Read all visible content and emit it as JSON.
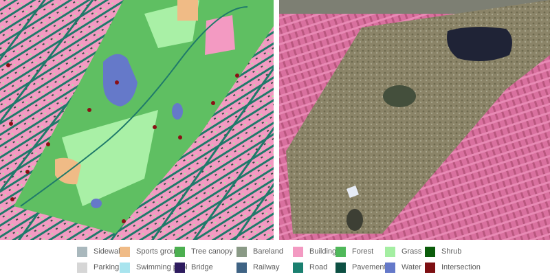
{
  "legend": [
    {
      "label": "Sidewalk",
      "color": "#a9b8bd"
    },
    {
      "label": "Sports ground",
      "color": "#f0bb86"
    },
    {
      "label": "Tree canopy",
      "color": "#4caf50"
    },
    {
      "label": "Bareland",
      "color": "#8a9a86"
    },
    {
      "label": "Building",
      "color": "#f39ac2"
    },
    {
      "label": "Forest",
      "color": "#4fb85a"
    },
    {
      "label": "Grass",
      "color": "#a4eea2"
    },
    {
      "label": "Shrub",
      "color": "#0b5c0b"
    },
    {
      "label": "Parking",
      "color": "#d6d6d6"
    },
    {
      "label": "Swimming pool",
      "color": "#a8e4ee"
    },
    {
      "label": "Bridge",
      "color": "#2d1b5e"
    },
    {
      "label": "Railway",
      "color": "#3f6384"
    },
    {
      "label": "Road",
      "color": "#1b8070"
    },
    {
      "label": "Pavement",
      "color": "#0d5043"
    },
    {
      "label": "Water",
      "color": "#6579c9"
    },
    {
      "label": "Intersection",
      "color": "#7d0f12"
    }
  ],
  "map_colors": {
    "building": "#f39ac2",
    "road": "#1f7a6a",
    "park_base": "#5fbf62",
    "grass": "#a9f0a6",
    "water": "#6579c9",
    "sports": "#f0bb86",
    "intersection": "#8a1015",
    "render_building": "#d9709f",
    "render_park": "#8b8468",
    "render_water": "#1f2336"
  }
}
